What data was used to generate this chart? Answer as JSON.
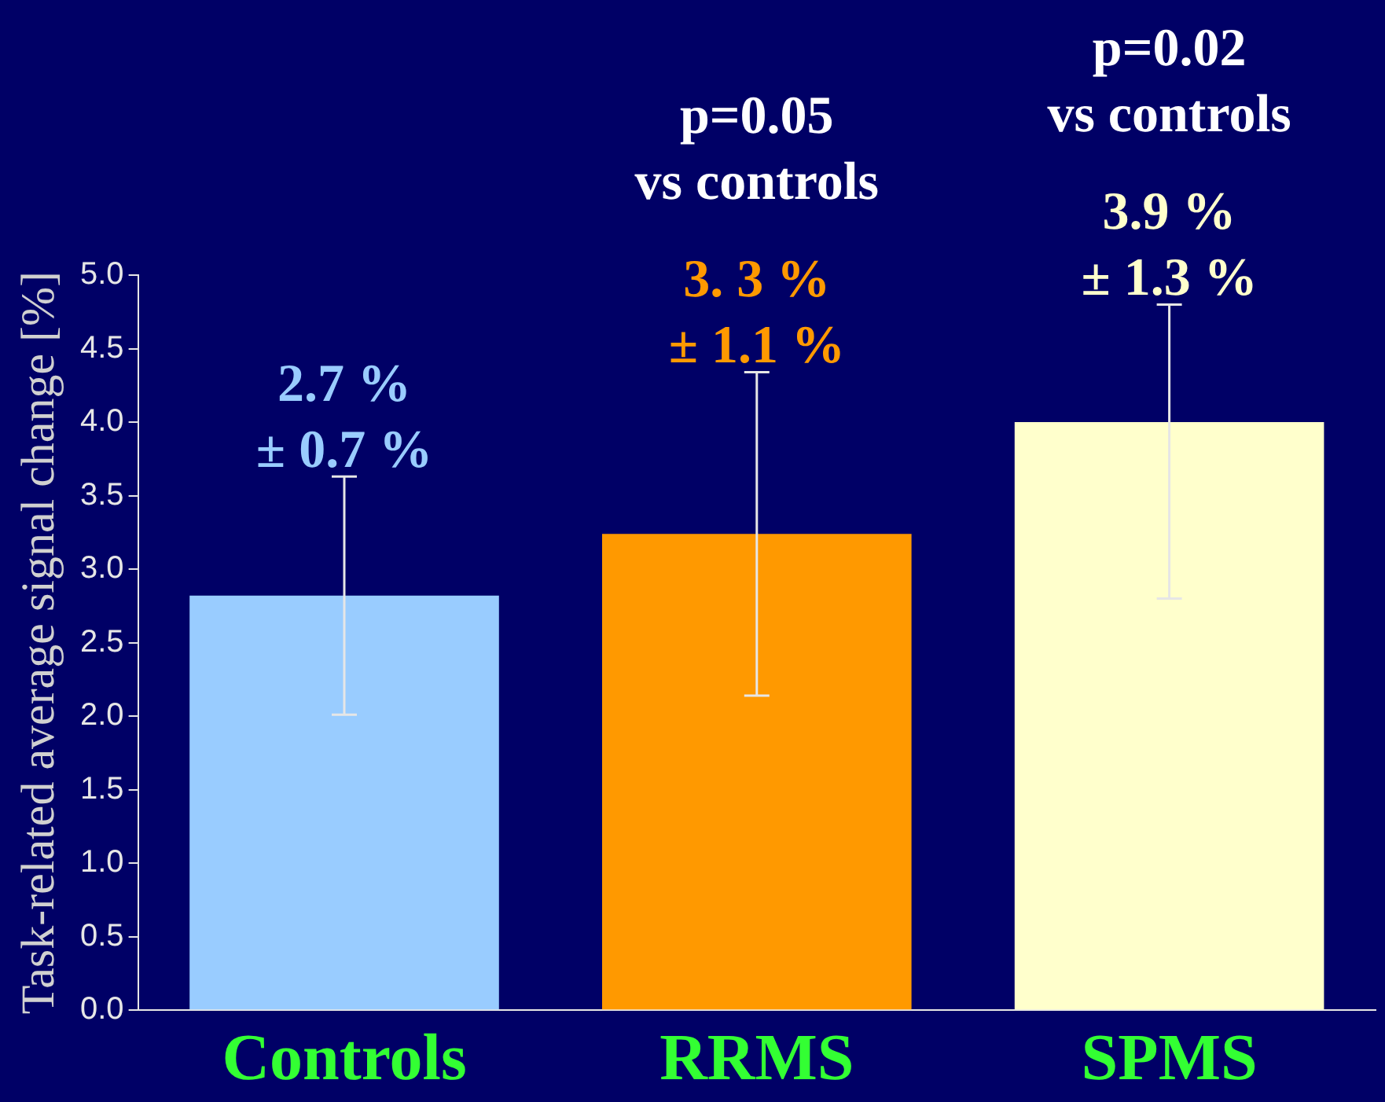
{
  "chart_data": {
    "type": "bar",
    "ylabel": "Task-related average signal change [%]",
    "categories": [
      "Controls",
      "RRMS",
      "SPMS"
    ],
    "values": [
      2.82,
      3.24,
      4.0
    ],
    "colors": [
      "#99ccff",
      "#ff9900",
      "#ffffcc"
    ],
    "errors": [
      0.81,
      1.1,
      [
        2.8,
        4.8
      ]
    ],
    "ylim": [
      0,
      5
    ],
    "yticks": [
      {
        "value": 0,
        "label": "0.0"
      },
      {
        "value": 0.5,
        "label": "0.5"
      },
      {
        "value": 1,
        "label": "1.0"
      },
      {
        "value": 1.5,
        "label": "1.5"
      },
      {
        "value": 2,
        "label": "2.0"
      },
      {
        "value": 2.5,
        "label": "2.5"
      },
      {
        "value": 3,
        "label": "3.0"
      },
      {
        "value": 3.5,
        "label": "3.5"
      },
      {
        "value": 4,
        "label": "4.0"
      },
      {
        "value": 4.5,
        "label": "4.5"
      },
      {
        "value": 5,
        "label": "5.0"
      }
    ],
    "grid": false,
    "legend": false,
    "annotations": [
      "2.7 %\n± 0.7 %",
      "3. 3 %\n± 1.1 %",
      "3.9 %\n± 1.3 %",
      "p=0.05\nvs controls",
      "p=0.02\nvs controls"
    ]
  }
}
